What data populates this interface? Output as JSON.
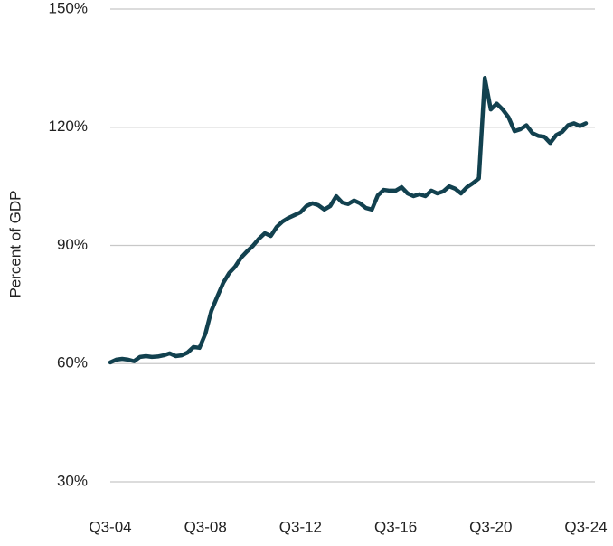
{
  "chart_data": {
    "type": "line",
    "ylabel": "Percent of GDP",
    "categories": [
      "Q3-04",
      null,
      null,
      null,
      null,
      null,
      null,
      null,
      null,
      null,
      null,
      null,
      null,
      null,
      null,
      null,
      "Q3-08",
      null,
      null,
      null,
      null,
      null,
      null,
      null,
      null,
      null,
      null,
      null,
      null,
      null,
      null,
      null,
      "Q3-12",
      null,
      null,
      null,
      null,
      null,
      null,
      null,
      null,
      null,
      null,
      null,
      null,
      null,
      null,
      null,
      "Q3-16",
      null,
      null,
      null,
      null,
      null,
      null,
      null,
      null,
      null,
      null,
      null,
      null,
      null,
      null,
      null,
      "Q3-20",
      null,
      null,
      null,
      null,
      null,
      null,
      null,
      null,
      null,
      null,
      null,
      null,
      null,
      null,
      null,
      "Q3-24"
    ],
    "series": [
      {
        "name": "Percent of GDP",
        "color": "#12414f",
        "values": [
          60.3,
          61,
          61.2,
          61,
          60.6,
          61.7,
          61.9,
          61.7,
          61.8,
          62.1,
          62.6,
          61.9,
          62.1,
          62.8,
          64.2,
          64,
          67.6,
          73.4,
          77,
          80.5,
          83,
          84.6,
          86.9,
          88.5,
          89.9,
          91.7,
          93.1,
          92.4,
          94.7,
          96.1,
          97,
          97.7,
          98.4,
          100,
          100.7,
          100.2,
          99.1,
          100,
          102.5,
          100.9,
          100.5,
          101.4,
          100.7,
          99.5,
          99.1,
          102.7,
          104.1,
          103.9,
          103.9,
          104.8,
          103.2,
          102.5,
          103,
          102.5,
          103.9,
          103.2,
          103.7,
          105,
          104.4,
          103.2,
          104.8,
          105.8,
          107,
          132.5,
          124.5,
          126,
          124.5,
          122.5,
          119,
          119.5,
          120.5,
          118.5,
          117.8,
          117.6,
          116,
          118,
          118.8,
          120.5,
          121,
          120.3,
          121
        ]
      }
    ],
    "ylim": [
      30,
      150
    ],
    "yticks": [
      {
        "value": 30,
        "label": "30%"
      },
      {
        "value": 60,
        "label": "60%"
      },
      {
        "value": 90,
        "label": "90%"
      },
      {
        "value": 120,
        "label": "120%"
      },
      {
        "value": 150,
        "label": "150%"
      }
    ],
    "grid": true
  }
}
